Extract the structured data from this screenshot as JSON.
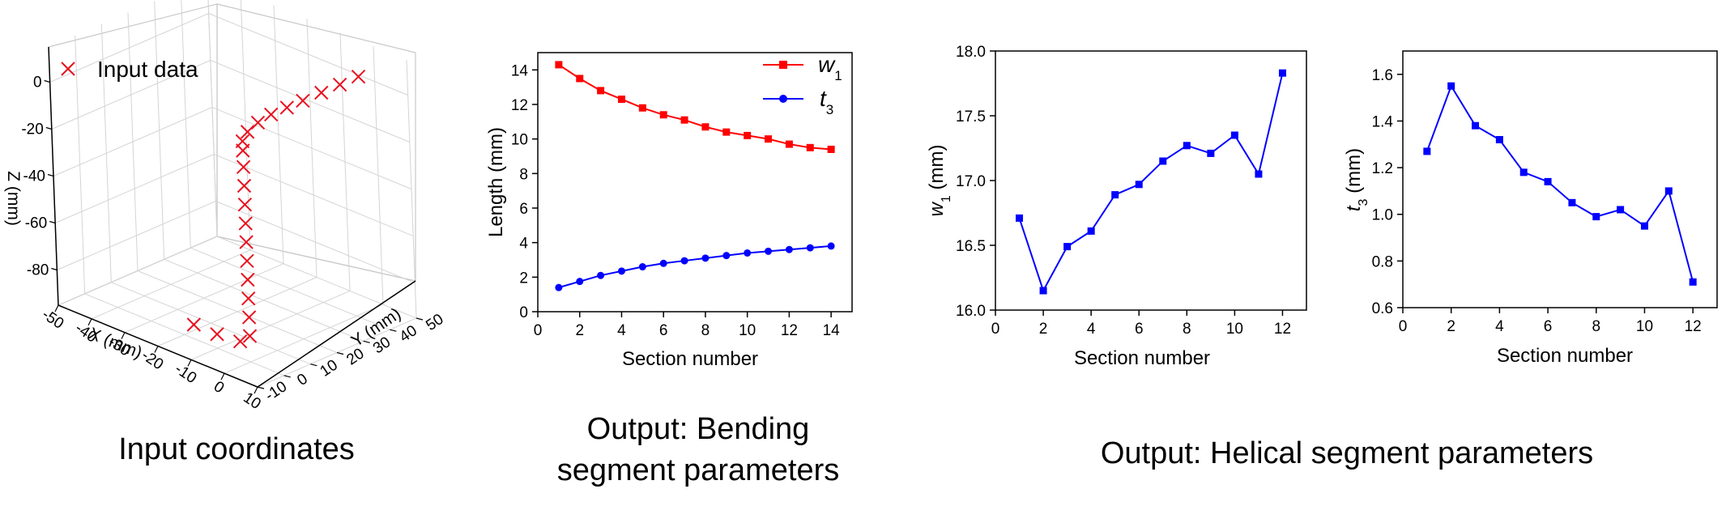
{
  "captions": {
    "left": "Input coordinates",
    "middle_line1": "Output: Bending",
    "middle_line2": "segment parameters",
    "right": "Output: Helical segment parameters"
  },
  "chart_data": [
    {
      "id": "input3d",
      "type": "scatter",
      "title": "",
      "legend": {
        "label": "Input data",
        "marker": "x",
        "color": "#e8121f",
        "position": "top-left"
      },
      "xlabel": "X (mm)",
      "ylabel": "Y (mm)",
      "zlabel": "Z (mm)",
      "x_ticks": [
        "-50",
        "-40",
        "-30",
        "-20",
        "-10",
        "0",
        "10"
      ],
      "y_ticks": [
        "-10",
        "0",
        "10",
        "20",
        "30",
        "40",
        "50"
      ],
      "z_ticks": [
        "0",
        "-20",
        "-40",
        "-60",
        "-80"
      ],
      "xlim": [
        -50,
        10
      ],
      "ylim": [
        -10,
        50
      ],
      "zlim": [
        -95,
        15
      ],
      "grid": true,
      "points": [
        {
          "x": 0,
          "y": 44,
          "z": 5
        },
        {
          "x": 0,
          "y": 37,
          "z": 5
        },
        {
          "x": 0,
          "y": 30,
          "z": 5
        },
        {
          "x": 0,
          "y": 23,
          "z": 5
        },
        {
          "x": 0,
          "y": 17,
          "z": 5
        },
        {
          "x": 0,
          "y": 11,
          "z": 5
        },
        {
          "x": 0,
          "y": 6,
          "z": 4
        },
        {
          "x": 0,
          "y": 2,
          "z": 2
        },
        {
          "x": 0,
          "y": 0,
          "z": -1
        },
        {
          "x": 0,
          "y": 0,
          "z": -5
        },
        {
          "x": 0,
          "y": 0,
          "z": -12
        },
        {
          "x": 0,
          "y": 0,
          "z": -20
        },
        {
          "x": 0,
          "y": 0,
          "z": -28
        },
        {
          "x": 0,
          "y": 0,
          "z": -36
        },
        {
          "x": 0,
          "y": 0,
          "z": -44
        },
        {
          "x": 0,
          "y": 0,
          "z": -52
        },
        {
          "x": 0,
          "y": 0,
          "z": -60
        },
        {
          "x": 0,
          "y": 0,
          "z": -68
        },
        {
          "x": 0,
          "y": 0,
          "z": -76
        },
        {
          "x": 0,
          "y": 0,
          "z": -84
        },
        {
          "x": -3,
          "y": 0,
          "z": -88
        },
        {
          "x": -10,
          "y": 0,
          "z": -89
        },
        {
          "x": -17,
          "y": 0,
          "z": -89
        }
      ]
    },
    {
      "id": "bending",
      "type": "line",
      "title": "",
      "xlabel": "Section number",
      "ylabel": "Length (mm)",
      "xlim": [
        0,
        15
      ],
      "ylim": [
        0,
        15
      ],
      "x_ticks": [
        0,
        2,
        4,
        6,
        8,
        10,
        12,
        14
      ],
      "y_ticks": [
        0,
        2,
        4,
        6,
        8,
        10,
        12,
        14
      ],
      "legend_position": "top-right",
      "x": [
        1,
        2,
        3,
        4,
        5,
        6,
        7,
        8,
        9,
        10,
        11,
        12,
        13,
        14
      ],
      "series": [
        {
          "name": "w",
          "name_sub": "1",
          "color": "#ff0000",
          "marker": "square",
          "values": [
            14.3,
            13.5,
            12.8,
            12.3,
            11.8,
            11.4,
            11.1,
            10.7,
            10.4,
            10.2,
            10.0,
            9.7,
            9.5,
            9.4
          ]
        },
        {
          "name": "t",
          "name_sub": "3",
          "color": "#0000ff",
          "marker": "circle",
          "values": [
            1.4,
            1.75,
            2.1,
            2.35,
            2.6,
            2.8,
            2.95,
            3.1,
            3.25,
            3.4,
            3.5,
            3.6,
            3.7,
            3.8
          ]
        }
      ]
    },
    {
      "id": "helical_w1",
      "type": "line",
      "title": "",
      "xlabel": "Section number",
      "ylabel": "w",
      "ylabel_sub": "1",
      "ylabel_tail": " (mm)",
      "xlim": [
        0,
        13
      ],
      "ylim": [
        16.0,
        18.0
      ],
      "x_ticks": [
        0,
        2,
        4,
        6,
        8,
        10,
        12
      ],
      "y_ticks": [
        "16.0",
        "16.5",
        "17.0",
        "17.5",
        "18.0"
      ],
      "x": [
        1,
        2,
        3,
        4,
        5,
        6,
        7,
        8,
        9,
        10,
        11,
        12
      ],
      "series": [
        {
          "color": "#0000ff",
          "marker": "square",
          "values": [
            16.71,
            16.15,
            16.49,
            16.61,
            16.89,
            16.97,
            17.15,
            17.27,
            17.21,
            17.35,
            17.05,
            17.83
          ]
        }
      ]
    },
    {
      "id": "helical_t3",
      "type": "line",
      "title": "",
      "xlabel": "Section number",
      "ylabel": "t",
      "ylabel_sub": "3",
      "ylabel_tail": " (mm)",
      "xlim": [
        0,
        13
      ],
      "ylim": [
        0.6,
        1.7
      ],
      "x_ticks": [
        0,
        2,
        4,
        6,
        8,
        10,
        12
      ],
      "y_ticks": [
        "0.6",
        "0.8",
        "1.0",
        "1.2",
        "1.4",
        "1.6"
      ],
      "x": [
        1,
        2,
        3,
        4,
        5,
        6,
        7,
        8,
        9,
        10,
        11,
        12
      ],
      "series": [
        {
          "color": "#0000ff",
          "marker": "square",
          "values": [
            1.27,
            1.55,
            1.38,
            1.32,
            1.18,
            1.14,
            1.05,
            0.99,
            1.02,
            0.95,
            1.1,
            0.71
          ]
        }
      ]
    }
  ]
}
